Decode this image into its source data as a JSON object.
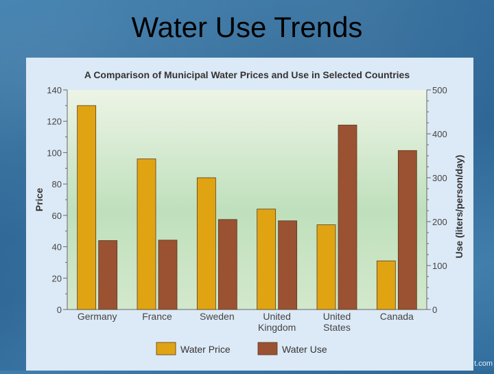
{
  "slide": {
    "title": "Water Use Trends",
    "watermark": "t.com"
  },
  "colors": {
    "price": "#e0a412",
    "use": "#9a5232",
    "plot_bg_top": "#edf4e6",
    "plot_bg_mid": "#bfe0bc",
    "panel_bg": "#dce9f6"
  },
  "chart_data": {
    "type": "bar",
    "title": "A Comparison of Municipal Water Prices and Use in Selected Countries",
    "categories": [
      [
        "Germany"
      ],
      [
        "France"
      ],
      [
        "Sweden"
      ],
      [
        "United",
        "Kingdom"
      ],
      [
        "United",
        "States"
      ],
      [
        "Canada"
      ]
    ],
    "series": [
      {
        "name": "Water Price",
        "axis": "left",
        "values": [
          130,
          96,
          84,
          64,
          54,
          31
        ]
      },
      {
        "name": "Water Use",
        "axis": "right",
        "values": [
          157,
          158,
          205,
          202,
          420,
          362
        ]
      }
    ],
    "ylabel": "Price",
    "ylim": [
      0,
      140
    ],
    "yticks": [
      0,
      20,
      40,
      60,
      80,
      100,
      120,
      140
    ],
    "y2label": "Use (liters/person/day)",
    "y2lim": [
      0,
      500
    ],
    "y2ticks": [
      0,
      100,
      200,
      300,
      400,
      500
    ],
    "grid": false,
    "legend_position": "bottom"
  }
}
